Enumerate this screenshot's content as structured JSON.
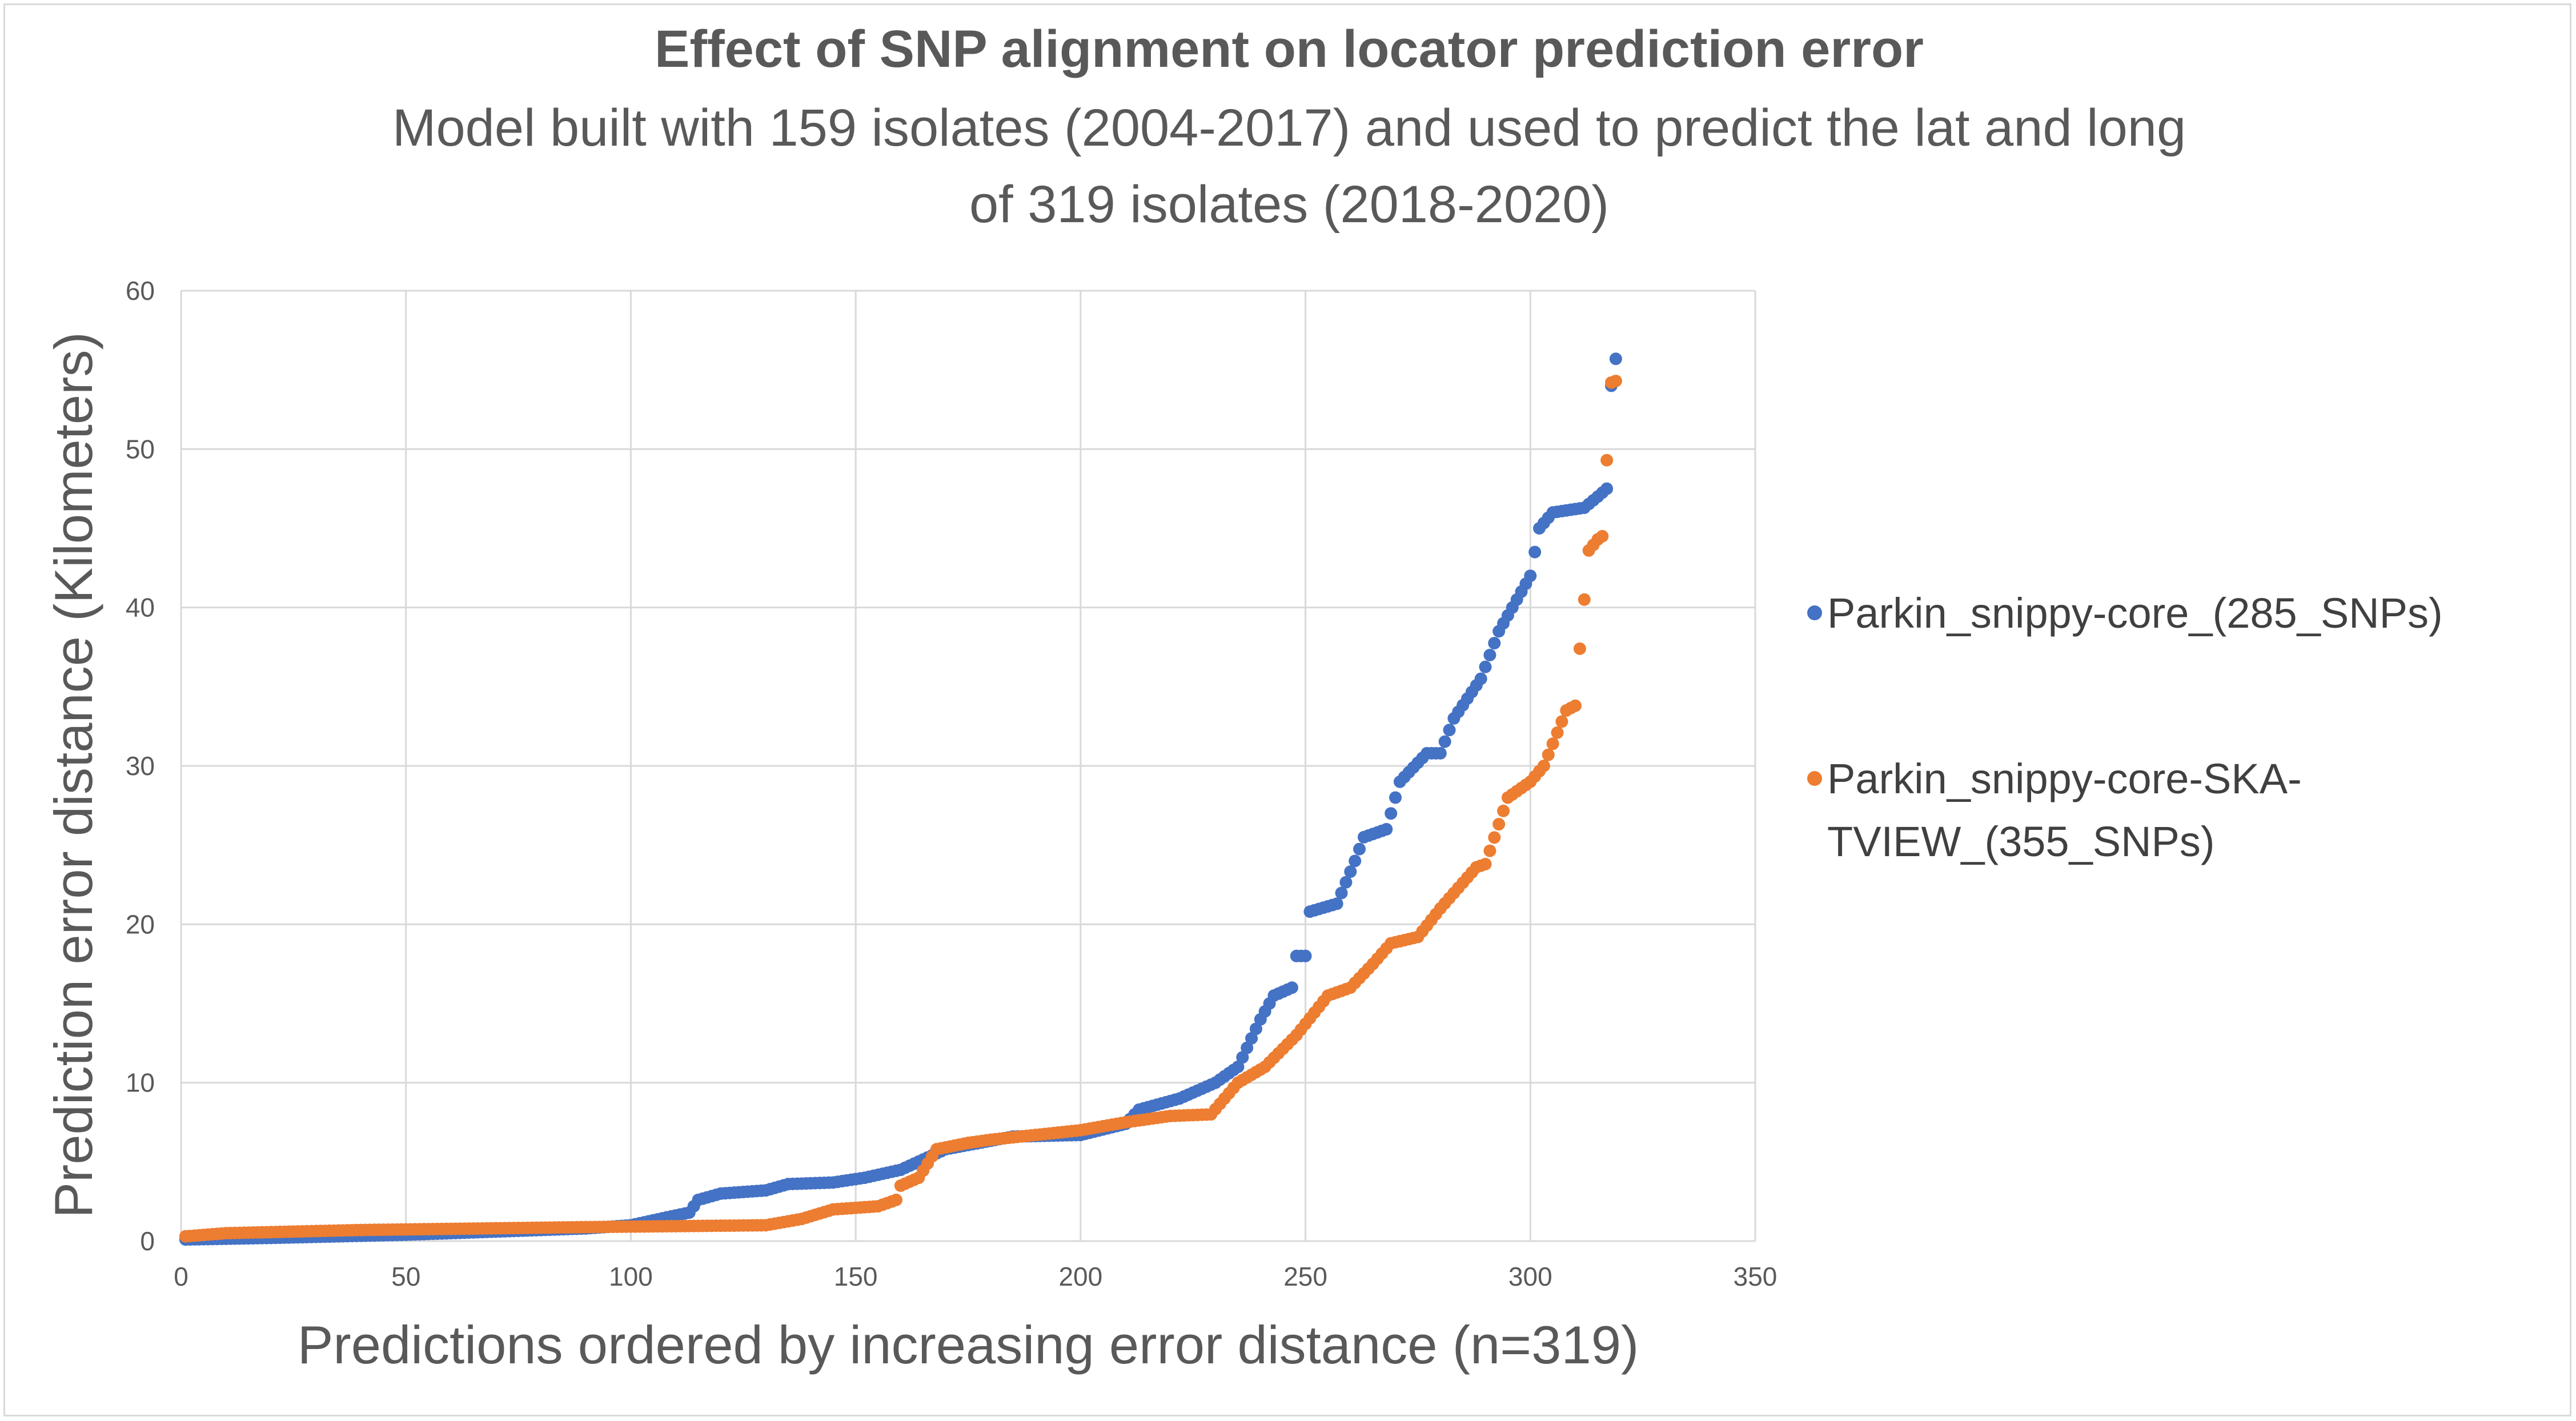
{
  "chart_data": {
    "type": "scatter",
    "title": "Effect of SNP alignment on locator prediction error",
    "subtitle_lines": [
      "Model built with 159 isolates (2004-2017) and used to predict the lat and long",
      "of 319 isolates (2018-2020)"
    ],
    "xlabel": "Predictions ordered by increasing error distance (n=319)",
    "ylabel": "Prediction error distance (Kilometers)",
    "xlim": [
      0,
      350
    ],
    "ylim": [
      0,
      60
    ],
    "x_ticks": [
      0,
      50,
      100,
      150,
      200,
      250,
      300,
      350
    ],
    "y_ticks": [
      0,
      10,
      20,
      30,
      40,
      50,
      60
    ],
    "grid": true,
    "legend_position": "right",
    "n_points": 319,
    "series": [
      {
        "name": "Parkin_snippy-core_(285_SNPs)",
        "legend_lines": [
          "Parkin_snippy-core_(285_SNPs)"
        ],
        "color": "#4472C4",
        "curve": [
          [
            1,
            0.1
          ],
          [
            20,
            0.2
          ],
          [
            50,
            0.4
          ],
          [
            70,
            0.6
          ],
          [
            90,
            0.8
          ],
          [
            100,
            1.0
          ],
          [
            108,
            1.5
          ],
          [
            113,
            1.8
          ],
          [
            115,
            2.6
          ],
          [
            120,
            3.0
          ],
          [
            130,
            3.2
          ],
          [
            135,
            3.6
          ],
          [
            145,
            3.7
          ],
          [
            152,
            4.0
          ],
          [
            160,
            4.5
          ],
          [
            170,
            5.8
          ],
          [
            185,
            6.6
          ],
          [
            200,
            6.7
          ],
          [
            210,
            7.4
          ],
          [
            213,
            8.3
          ],
          [
            222,
            9.0
          ],
          [
            230,
            10.0
          ],
          [
            235,
            11.0
          ],
          [
            240,
            14.0
          ],
          [
            243,
            15.5
          ],
          [
            247,
            16.0
          ],
          [
            248,
            18.0
          ],
          [
            250,
            18.0
          ],
          [
            251,
            20.8
          ],
          [
            257,
            21.3
          ],
          [
            261,
            24.0
          ],
          [
            263,
            25.5
          ],
          [
            268,
            26.0
          ],
          [
            271,
            29.0
          ],
          [
            277,
            30.8
          ],
          [
            280,
            30.8
          ],
          [
            283,
            33.0
          ],
          [
            289,
            35.5
          ],
          [
            293,
            38.5
          ],
          [
            300,
            42.0
          ],
          [
            302,
            45.0
          ],
          [
            305,
            46.0
          ],
          [
            312,
            46.3
          ],
          [
            315,
            47.0
          ],
          [
            317,
            47.5
          ],
          [
            318,
            54.0
          ],
          [
            319,
            55.7
          ]
        ]
      },
      {
        "name": "Parkin_snippy-core-SKA-TVIEW_(355_SNPs)",
        "legend_lines": [
          "Parkin_snippy-core-SKA-",
          "TVIEW_(355_SNPs)"
        ],
        "color": "#ED7D31",
        "curve": [
          [
            1,
            0.3
          ],
          [
            10,
            0.5
          ],
          [
            40,
            0.7
          ],
          [
            95,
            0.9
          ],
          [
            130,
            1.0
          ],
          [
            138,
            1.4
          ],
          [
            145,
            2.0
          ],
          [
            155,
            2.2
          ],
          [
            159,
            2.6
          ],
          [
            160,
            3.5
          ],
          [
            164,
            4.0
          ],
          [
            168,
            5.8
          ],
          [
            175,
            6.2
          ],
          [
            180,
            6.4
          ],
          [
            200,
            7.0
          ],
          [
            210,
            7.5
          ],
          [
            220,
            7.9
          ],
          [
            229,
            8.0
          ],
          [
            235,
            10.0
          ],
          [
            241,
            11.0
          ],
          [
            248,
            13.0
          ],
          [
            255,
            15.5
          ],
          [
            260,
            16.0
          ],
          [
            265,
            17.5
          ],
          [
            269,
            18.8
          ],
          [
            275,
            19.2
          ],
          [
            280,
            21.0
          ],
          [
            288,
            23.6
          ],
          [
            290,
            23.8
          ],
          [
            295,
            28.0
          ],
          [
            300,
            29.0
          ],
          [
            303,
            30.0
          ],
          [
            308,
            33.5
          ],
          [
            310,
            33.8
          ],
          [
            311,
            37.4
          ],
          [
            313,
            43.6
          ],
          [
            315,
            44.3
          ],
          [
            316,
            44.5
          ],
          [
            317,
            49.3
          ],
          [
            318,
            54.2
          ],
          [
            319,
            54.3
          ]
        ]
      }
    ]
  }
}
